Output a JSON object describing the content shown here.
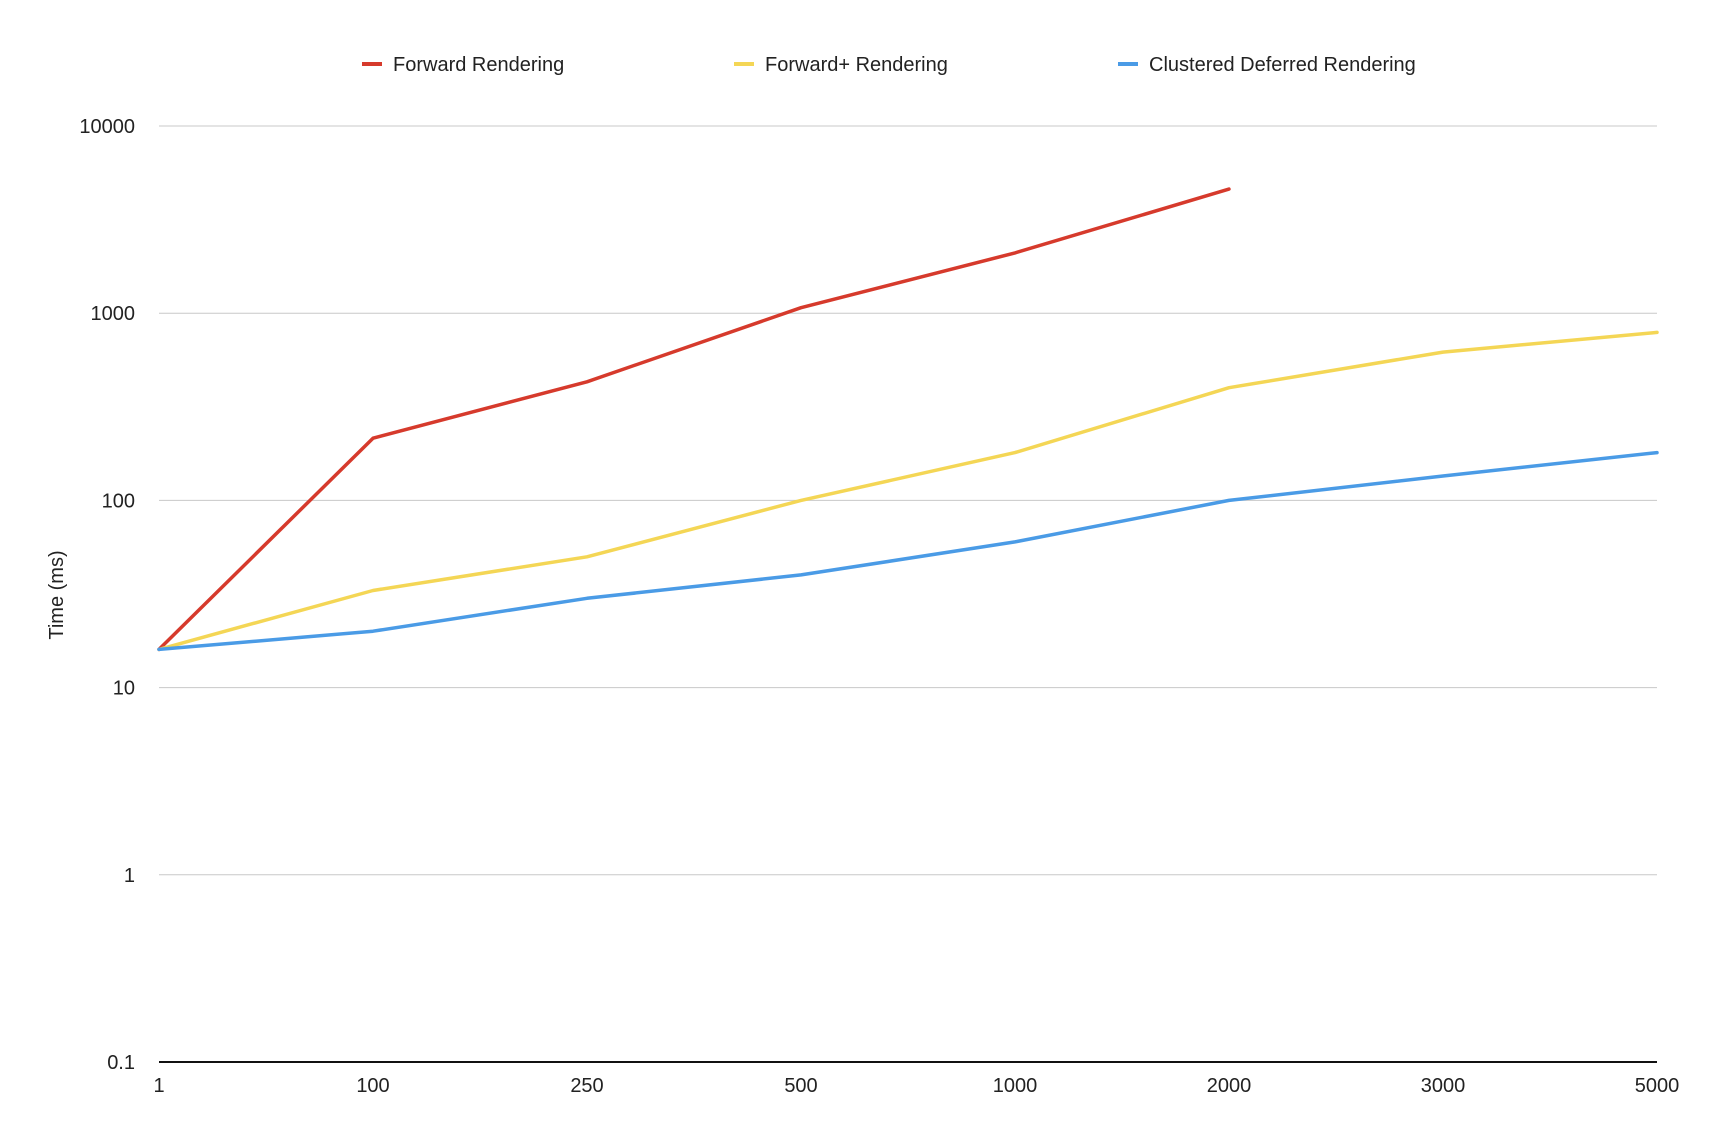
{
  "chart_data": {
    "type": "line",
    "title": "",
    "xlabel": "",
    "ylabel": "Time (ms)",
    "yscale": "log",
    "ylim": [
      0.1,
      10000
    ],
    "yticks": [
      "0.1",
      "1",
      "10",
      "100",
      "1000",
      "10000"
    ],
    "categories": [
      "1",
      "100",
      "250",
      "500",
      "1000",
      "2000",
      "3000",
      "5000"
    ],
    "grid": true,
    "legend_position": "top",
    "series": [
      {
        "name": "Forward Rendering",
        "color": "#d63a2c",
        "values": [
          16,
          215,
          430,
          1070,
          2100,
          4600,
          null,
          null
        ]
      },
      {
        "name": "Forward+ Rendering",
        "color": "#f4d655",
        "values": [
          16,
          33,
          50,
          100,
          180,
          400,
          620,
          790
        ]
      },
      {
        "name": "Clustered Deferred Rendering",
        "color": "#4a9be6",
        "values": [
          16,
          20,
          30,
          40,
          60,
          100,
          135,
          180
        ]
      }
    ]
  }
}
